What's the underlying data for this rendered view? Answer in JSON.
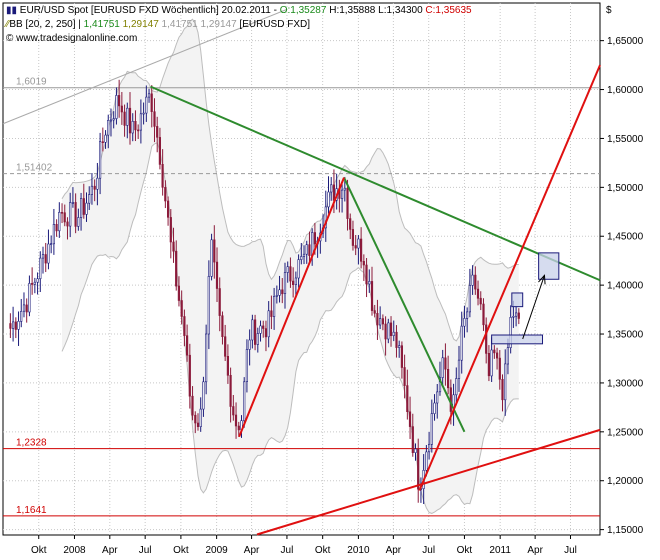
{
  "header": {
    "line1": {
      "symbol": "EUR/USD Spot [EURUSD FXD  Wöchentlich] 20.02.2011 - ",
      "open": "O:1,35287",
      "high": " H:1,35888",
      "low": " L:1,34300",
      "close": " C:1,35635"
    },
    "line2": {
      "bb": "BB [20, 2, 250]",
      "v1": "1,41751",
      "v2": "1,29147",
      "v3": "1,41751",
      "v4": "1,29147",
      "ref": "[EURUSD FXD]"
    },
    "line3": "© www.tradesignalonline.com",
    "currency": "$"
  },
  "colors": {
    "background": "#ffffff",
    "grid": "#c8c8c8",
    "band": "#bdbdbd",
    "band_fill": "#f3f3f3",
    "candle": "#1a1a7a",
    "candle_down": "#8b1a3a",
    "green_line": "#2e8b2e",
    "red_line": "#e01010",
    "hline_gray": "#999999",
    "hline_red": "#d00000",
    "box_fill": "#c8d0ea",
    "box_stroke": "#1a1a7a",
    "open_color": "#1a8a1a",
    "close_color": "#d00000",
    "bb_color": "#808000"
  },
  "chart_data": {
    "type": "candlestick",
    "title": "EUR/USD Spot [EURUSD FXD  Wöchentlich] 20.02.2011",
    "ylim": [
      1.1445,
      1.6885
    ],
    "y_ticks": [
      "1,65000",
      "1,60000",
      "1,55000",
      "1,50000",
      "1,45000",
      "1,40000",
      "1,35000",
      "1,30000",
      "1,25000",
      "1,20000",
      "1,15000"
    ],
    "y_tick_values": [
      1.65,
      1.6,
      1.55,
      1.5,
      1.45,
      1.4,
      1.35,
      1.3,
      1.25,
      1.2,
      1.15
    ],
    "x_ticks": [
      "Okt",
      "2008",
      "Apr",
      "Jul",
      "Okt",
      "2009",
      "Apr",
      "Jul",
      "Okt",
      "2010",
      "Apr",
      "Jul",
      "Okt",
      "2011",
      "Apr",
      "Jul"
    ],
    "x_tick_dates": [
      "2007-10-01",
      "2008-01-01",
      "2008-04-01",
      "2008-07-01",
      "2008-10-01",
      "2009-01-01",
      "2009-04-01",
      "2009-07-01",
      "2009-10-01",
      "2010-01-01",
      "2010-04-01",
      "2010-07-01",
      "2010-10-01",
      "2011-01-01",
      "2011-04-01",
      "2011-07-01"
    ],
    "x_range": [
      "2007-07-01",
      "2011-09-15"
    ],
    "price_anchors": [
      [
        "2007-07-20",
        1.356
      ],
      [
        "2007-09-01",
        1.385
      ],
      [
        "2007-10-15",
        1.43
      ],
      [
        "2007-11-25",
        1.475
      ],
      [
        "2008-01-10",
        1.47
      ],
      [
        "2008-02-20",
        1.5
      ],
      [
        "2008-03-20",
        1.56
      ],
      [
        "2008-04-22",
        1.59
      ],
      [
        "2008-06-01",
        1.555
      ],
      [
        "2008-07-15",
        1.595
      ],
      [
        "2008-08-10",
        1.53
      ],
      [
        "2008-09-05",
        1.44
      ],
      [
        "2008-10-10",
        1.35
      ],
      [
        "2008-10-28",
        1.27
      ],
      [
        "2008-11-20",
        1.26
      ],
      [
        "2008-12-18",
        1.44
      ],
      [
        "2009-01-10",
        1.355
      ],
      [
        "2009-02-18",
        1.26
      ],
      [
        "2009-03-05",
        1.26
      ],
      [
        "2009-03-25",
        1.35
      ],
      [
        "2009-05-15",
        1.36
      ],
      [
        "2009-06-15",
        1.4
      ],
      [
        "2009-07-20",
        1.415
      ],
      [
        "2009-08-20",
        1.43
      ],
      [
        "2009-09-25",
        1.465
      ],
      [
        "2009-10-25",
        1.495
      ],
      [
        "2009-11-25",
        1.505
      ],
      [
        "2009-12-15",
        1.45
      ],
      [
        "2010-01-15",
        1.43
      ],
      [
        "2010-02-10",
        1.375
      ],
      [
        "2010-03-10",
        1.36
      ],
      [
        "2010-04-10",
        1.34
      ],
      [
        "2010-05-10",
        1.27
      ],
      [
        "2010-06-07",
        1.195
      ],
      [
        "2010-06-25",
        1.235
      ],
      [
        "2010-07-20",
        1.29
      ],
      [
        "2010-08-10",
        1.32
      ],
      [
        "2010-09-01",
        1.27
      ],
      [
        "2010-09-25",
        1.35
      ],
      [
        "2010-10-25",
        1.405
      ],
      [
        "2010-11-15",
        1.37
      ],
      [
        "2010-11-30",
        1.3
      ],
      [
        "2010-12-15",
        1.33
      ],
      [
        "2011-01-10",
        1.29
      ],
      [
        "2011-01-31",
        1.375
      ],
      [
        "2011-02-20",
        1.356
      ]
    ],
    "bollinger_period_weeks": 20,
    "bollinger_stddev": 2,
    "horizontal_lines": [
      {
        "label": "1,6019",
        "value": 1.6019,
        "style": "gray"
      },
      {
        "label": "1,51402",
        "value": 1.51402,
        "style": "gray-dashed"
      },
      {
        "label": "1,2328",
        "value": 1.2328,
        "style": "red"
      },
      {
        "label": "1,1641",
        "value": 1.1641,
        "style": "red"
      }
    ],
    "trendlines": [
      {
        "color": "green",
        "from": [
          "2008-07-15",
          1.603
        ],
        "to": [
          "2011-09-15",
          1.405
        ]
      },
      {
        "color": "green",
        "from": [
          "2009-11-25",
          1.51
        ],
        "to": [
          "2010-10-01",
          1.25
        ]
      },
      {
        "color": "red",
        "from": [
          "2009-02-28",
          1.245
        ],
        "to": [
          "2009-11-25",
          1.51
        ]
      },
      {
        "color": "red",
        "from": [
          "2010-06-07",
          1.19
        ],
        "to": [
          "2011-09-15",
          1.625
        ]
      },
      {
        "color": "red",
        "from": [
          "2009-04-15",
          1.145
        ],
        "to": [
          "2011-09-15",
          1.252
        ]
      },
      {
        "color": "gray",
        "from": [
          "2007-07-01",
          1.565
        ],
        "to": [
          "2009-07-01",
          1.682
        ]
      }
    ],
    "annotations": [
      {
        "type": "box",
        "from": [
          "2011-01-31",
          1.392
        ],
        "to": [
          "2011-02-28",
          1.378
        ]
      },
      {
        "type": "box",
        "from": [
          "2010-12-10",
          1.349
        ],
        "to": [
          "2011-04-20",
          1.34
        ]
      },
      {
        "type": "box",
        "from": [
          "2011-04-10",
          1.433
        ],
        "to": [
          "2011-06-01",
          1.406
        ]
      },
      {
        "type": "arrow",
        "from": [
          "2011-02-28",
          1.345
        ],
        "to": [
          "2011-04-25",
          1.41
        ]
      }
    ],
    "grid": true
  }
}
